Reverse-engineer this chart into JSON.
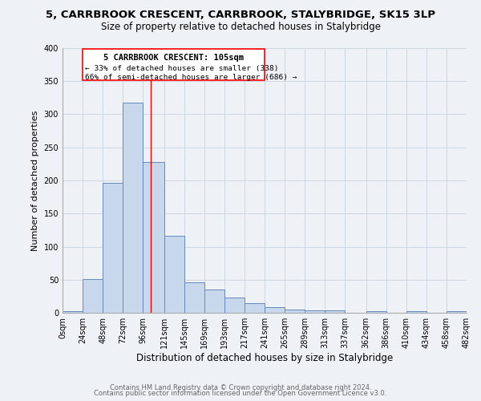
{
  "title": "5, CARRBROOK CRESCENT, CARRBROOK, STALYBRIDGE, SK15 3LP",
  "subtitle": "Size of property relative to detached houses in Stalybridge",
  "xlabel": "Distribution of detached houses by size in Stalybridge",
  "ylabel": "Number of detached properties",
  "bar_color": "#c8d8ec",
  "bar_edge_color": "#6688bb",
  "bin_edges": [
    0,
    24,
    48,
    72,
    96,
    121,
    145,
    169,
    193,
    217,
    241,
    265,
    289,
    313,
    337,
    362,
    386,
    410,
    434,
    458,
    482
  ],
  "bin_labels": [
    "0sqm",
    "24sqm",
    "48sqm",
    "72sqm",
    "96sqm",
    "121sqm",
    "145sqm",
    "169sqm",
    "193sqm",
    "217sqm",
    "241sqm",
    "265sqm",
    "289sqm",
    "313sqm",
    "337sqm",
    "362sqm",
    "386sqm",
    "410sqm",
    "434sqm",
    "458sqm",
    "482sqm"
  ],
  "counts": [
    2,
    51,
    196,
    317,
    228,
    116,
    46,
    35,
    23,
    14,
    8,
    5,
    4,
    4,
    0,
    3,
    0,
    2,
    0,
    3
  ],
  "property_size": 105,
  "annotation_title": "5 CARRBROOK CRESCENT: 105sqm",
  "annotation_line1": "← 33% of detached houses are smaller (338)",
  "annotation_line2": "66% of semi-detached houses are larger (686) →",
  "vline_x": 105,
  "ylim": [
    0,
    400
  ],
  "yticks": [
    0,
    50,
    100,
    150,
    200,
    250,
    300,
    350,
    400
  ],
  "footer1": "Contains HM Land Registry data © Crown copyright and database right 2024.",
  "footer2": "Contains public sector information licensed under the Open Government Licence v3.0.",
  "background_color": "#eef2f7",
  "grid_color": "#c8d4e0"
}
